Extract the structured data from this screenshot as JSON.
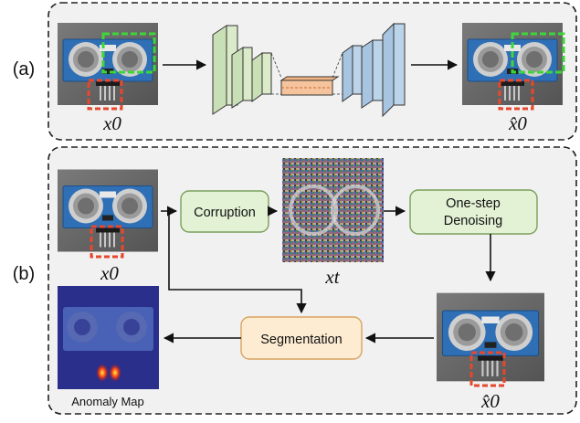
{
  "panel_a": {
    "label": "(a)",
    "input_caption": "x0",
    "output_caption": "x̂0"
  },
  "panel_b": {
    "label": "(b)",
    "input_caption": "x0",
    "noisy_caption": "xt",
    "output_caption": "x̂0",
    "map_caption": "Anomaly Map",
    "nodes": {
      "corruption": "Corruption",
      "denoising_line1": "One-step",
      "denoising_line2": "Denoising",
      "segmentation": "Segmentation"
    }
  },
  "colors": {
    "panel_bg": "#f1f1f1",
    "panel_border": "#222222",
    "green_node": "#e3f1d5",
    "green_stroke": "#7aa05c",
    "orange_node": "#fdecd2",
    "orange_stroke": "#d9a35e",
    "defect_box": "#e8472c",
    "recon_box": "#3fd63a",
    "unet_green": "#c9dfb5",
    "unet_blue": "#a7c5e0",
    "bottleneck": "#f3b584"
  },
  "icons": [
    "arrow-right-icon",
    "arrow-down-icon",
    "sensor-photo-icon"
  ]
}
